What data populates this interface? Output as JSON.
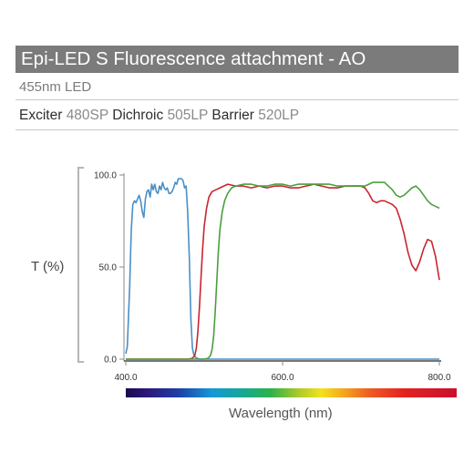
{
  "header": {
    "title": "Epi-LED S Fluorescence attachment - AO",
    "subtitle": "455nm LED"
  },
  "filters": {
    "exciter_label": "Exciter",
    "exciter_value": "480SP",
    "dichroic_label": "Dichroic",
    "dichroic_value": "505LP",
    "barrier_label": "Barrier",
    "barrier_value": "520LP"
  },
  "chart_data": {
    "type": "line",
    "xlabel": "Wavelength (nm)",
    "ylabel": "T (%)",
    "xlim": [
      400,
      800
    ],
    "ylim": [
      0,
      100
    ],
    "x_ticks": [
      "400.0",
      "600.0",
      "800.0"
    ],
    "y_ticks": [
      "0.0",
      "50.0",
      "100.0"
    ],
    "grid": false,
    "series": [
      {
        "color": "#4a8fc7",
        "x": [
          400,
          402,
          405,
          407,
          409,
          411,
          413,
          415,
          417,
          419,
          421,
          423,
          425,
          427,
          429,
          431,
          433,
          435,
          437,
          439,
          441,
          443,
          445,
          447,
          449,
          451,
          453,
          455,
          457,
          459,
          461,
          463,
          465,
          467,
          469,
          471,
          473,
          475,
          477,
          479,
          481,
          483,
          485,
          487,
          489,
          491,
          494,
          498,
          505,
          520,
          600,
          700,
          800
        ],
        "y": [
          3,
          7,
          40,
          70,
          84,
          86,
          85,
          87,
          89,
          86,
          80,
          77,
          87,
          91,
          92,
          88,
          95,
          92,
          95,
          91,
          90,
          94,
          92,
          96,
          93,
          92,
          93,
          90,
          90,
          91,
          93,
          96,
          95,
          98,
          98,
          98,
          97,
          93,
          94,
          80,
          55,
          22,
          6,
          2,
          1,
          0.5,
          0,
          0,
          0,
          0,
          0,
          0,
          0
        ]
      },
      {
        "color": "#c9262c",
        "x": [
          400,
          470,
          480,
          485,
          488,
          490,
          492,
          494,
          496,
          498,
          500,
          503,
          506,
          510,
          515,
          520,
          525,
          530,
          540,
          550,
          560,
          570,
          580,
          590,
          600,
          610,
          620,
          630,
          640,
          650,
          660,
          670,
          680,
          690,
          700,
          705,
          710,
          715,
          720,
          725,
          730,
          735,
          740,
          745,
          750,
          755,
          760,
          765,
          770,
          775,
          780,
          785,
          790,
          795,
          800
        ],
        "y": [
          0,
          0,
          0,
          0.5,
          2,
          6,
          15,
          28,
          45,
          60,
          72,
          82,
          88,
          91,
          92,
          93,
          94,
          95,
          94,
          94,
          93,
          94,
          93,
          94,
          94,
          93,
          93,
          94,
          95,
          94,
          93,
          93,
          94,
          94,
          94,
          93,
          90,
          86,
          85,
          86,
          86,
          85,
          84,
          82,
          76,
          68,
          58,
          51,
          48,
          53,
          60,
          65,
          64,
          56,
          43
        ]
      },
      {
        "color": "#4a9e3e",
        "x": [
          400,
          500,
          505,
          508,
          510,
          512,
          514,
          516,
          518,
          520,
          523,
          526,
          530,
          535,
          540,
          550,
          560,
          570,
          580,
          590,
          600,
          610,
          620,
          630,
          640,
          650,
          660,
          670,
          680,
          690,
          700,
          705,
          710,
          715,
          720,
          730,
          740,
          745,
          750,
          755,
          760,
          765,
          770,
          775,
          780,
          785,
          790,
          795,
          800
        ],
        "y": [
          0,
          0,
          0.5,
          2,
          5,
          12,
          25,
          42,
          58,
          70,
          80,
          86,
          90,
          93,
          94,
          95,
          95,
          94,
          94,
          95,
          95,
          94,
          95,
          95,
          95,
          95,
          95,
          94,
          94,
          94,
          94,
          94,
          95,
          96,
          96,
          96,
          92,
          89,
          88,
          89,
          91,
          93,
          94,
          92,
          89,
          86,
          84,
          83,
          82
        ]
      }
    ]
  }
}
